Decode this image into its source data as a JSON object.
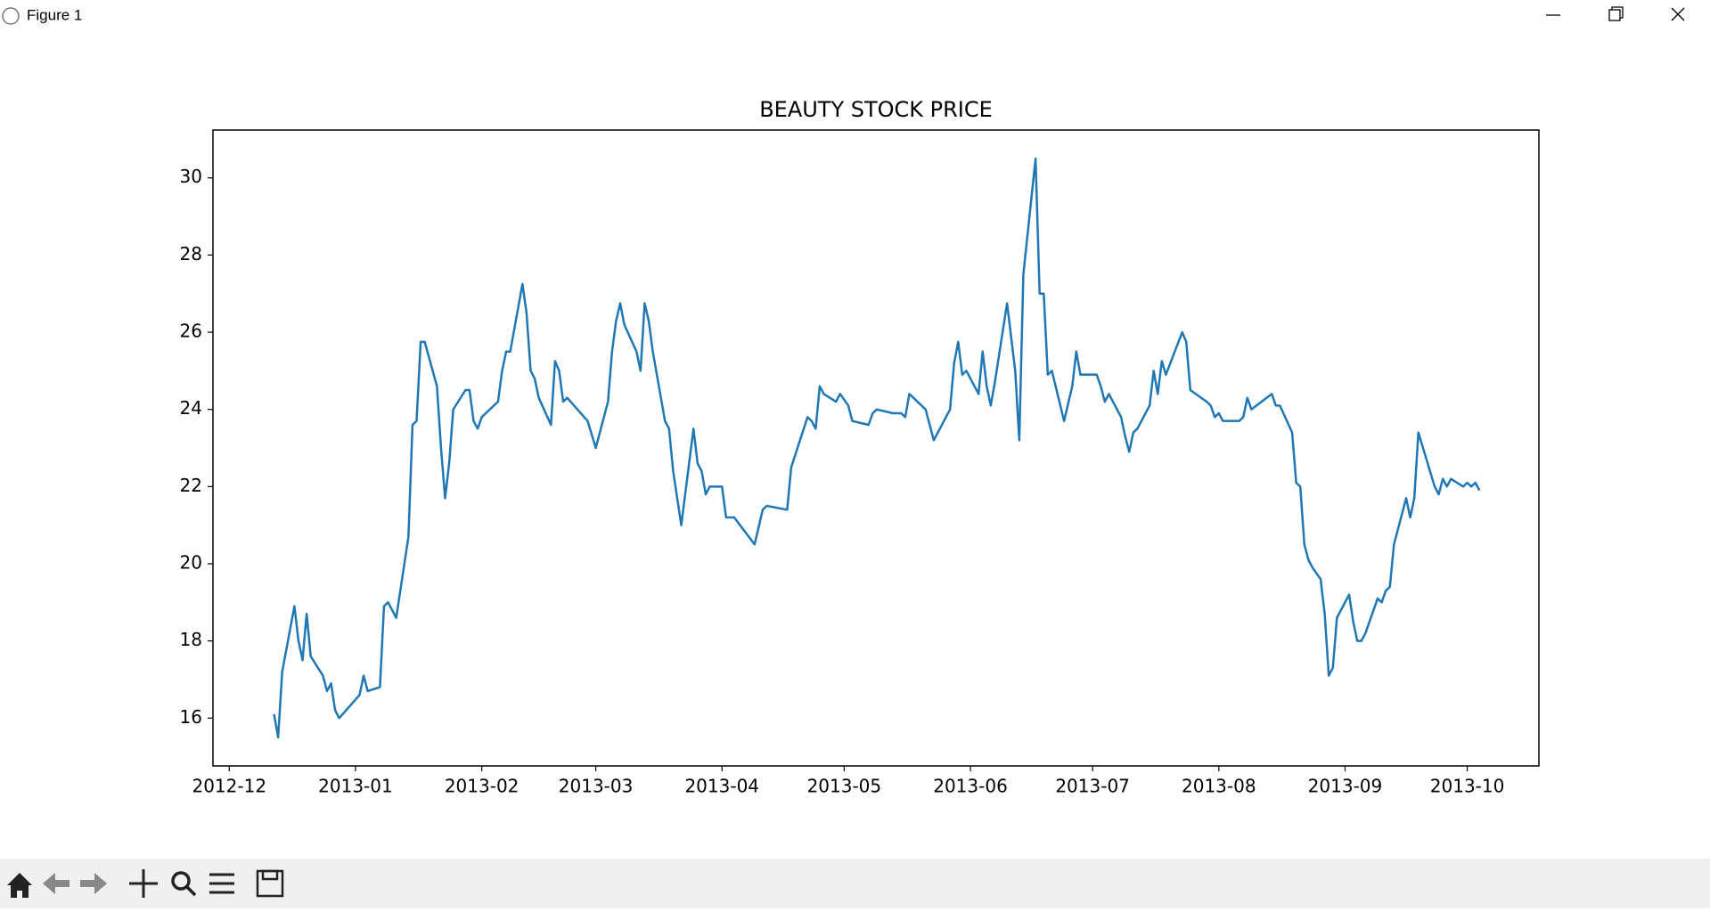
{
  "window_title": "Figure 1",
  "chart_data": {
    "type": "line",
    "title": "BEAUTY STOCK PRICE",
    "color": "#1f77b4",
    "grid": false,
    "x": [
      15686,
      15687,
      15688,
      15691,
      15692,
      15693,
      15694,
      15695,
      15698,
      15699,
      15700,
      15701,
      15702,
      15707,
      15708,
      15709,
      15712,
      15713,
      15714,
      15716,
      15719,
      15720,
      15721,
      15722,
      15723,
      15726,
      15727,
      15728,
      15729,
      15730,
      15733,
      15734,
      15735,
      15736,
      15737,
      15741,
      15742,
      15743,
      15744,
      15747,
      15748,
      15749,
      15750,
      15751,
      15754,
      15755,
      15756,
      15757,
      15758,
      15763,
      15765,
      15768,
      15769,
      15770,
      15771,
      15772,
      15775,
      15776,
      15777,
      15778,
      15779,
      15782,
      15783,
      15784,
      15786,
      15789,
      15790,
      15791,
      15792,
      15793,
      15796,
      15797,
      15799,
      15804,
      15806,
      15807,
      15812,
      15813,
      15817,
      15818,
      15819,
      15820,
      15821,
      15824,
      15825,
      15827,
      15828,
      15832,
      15833,
      15834,
      15838,
      15840,
      15841,
      15842,
      15846,
      15848,
      15852,
      15853,
      15854,
      15855,
      15856,
      15859,
      15860,
      15861,
      15862,
      15863,
      15866,
      15868,
      15869,
      15870,
      15873,
      15874,
      15875,
      15876,
      15877,
      15880,
      15882,
      15883,
      15884,
      15888,
      15889,
      15890,
      15891,
      15894,
      15895,
      15896,
      15897,
      15898,
      15901,
      15902,
      15903,
      15904,
      15905,
      15909,
      15910,
      15911,
      15915,
      15916,
      15917,
      15918,
      15919,
      15923,
      15924,
      15925,
      15926,
      15931,
      15932,
      15933,
      15936,
      15937,
      15938,
      15939,
      15940,
      15941,
      15943,
      15944,
      15945,
      15946,
      15947,
      15950,
      15951,
      15952,
      15953,
      15954,
      15957,
      15958,
      15959,
      15960,
      15961,
      15964,
      15965,
      15966,
      15967,
      15971,
      15972,
      15973,
      15974,
      15975,
      15978,
      15979,
      15980,
      15981,
      15982
    ],
    "values": [
      16.1,
      15.5,
      17.2,
      18.9,
      18.0,
      17.5,
      18.7,
      17.6,
      17.1,
      16.7,
      16.9,
      16.2,
      16.0,
      16.6,
      17.1,
      16.7,
      16.8,
      18.9,
      19.0,
      18.6,
      20.7,
      23.6,
      23.7,
      25.75,
      25.75,
      24.6,
      23.0,
      21.7,
      22.6,
      24.0,
      24.5,
      24.5,
      23.7,
      23.5,
      23.8,
      24.2,
      25.0,
      25.5,
      25.5,
      27.25,
      26.5,
      25.0,
      24.8,
      24.3,
      23.6,
      25.25,
      25.0,
      24.2,
      24.3,
      23.7,
      23.0,
      24.2,
      25.5,
      26.3,
      26.75,
      26.2,
      25.5,
      25.0,
      26.75,
      26.3,
      25.5,
      23.7,
      23.5,
      22.4,
      21.0,
      23.5,
      22.6,
      22.4,
      21.8,
      22.0,
      22.0,
      21.2,
      21.2,
      20.5,
      21.4,
      21.5,
      21.4,
      22.5,
      23.8,
      23.7,
      23.5,
      24.6,
      24.4,
      24.2,
      24.4,
      24.1,
      23.7,
      23.6,
      23.9,
      24.0,
      23.9,
      23.9,
      23.8,
      24.4,
      24.0,
      23.2,
      24.0,
      25.2,
      25.75,
      24.9,
      25.0,
      24.4,
      25.5,
      24.6,
      24.1,
      24.7,
      26.75,
      25.0,
      23.2,
      27.5,
      30.5,
      27.0,
      27.0,
      24.9,
      25.0,
      23.7,
      24.6,
      25.5,
      24.9,
      24.9,
      24.6,
      24.2,
      24.4,
      23.8,
      23.3,
      22.9,
      23.4,
      23.5,
      24.1,
      25.0,
      24.4,
      25.25,
      24.9,
      26.0,
      25.75,
      24.5,
      24.2,
      24.1,
      23.8,
      23.9,
      23.7,
      23.7,
      23.8,
      24.3,
      24.0,
      24.4,
      24.1,
      24.1,
      23.4,
      22.1,
      22.0,
      20.5,
      20.1,
      19.9,
      19.6,
      18.7,
      17.1,
      17.3,
      18.6,
      19.2,
      18.5,
      18.0,
      18.0,
      18.2,
      19.1,
      19.0,
      19.3,
      19.4,
      20.5,
      21.7,
      21.2,
      21.7,
      23.4,
      22.0,
      21.8,
      22.2,
      22.0,
      22.2,
      22.0,
      22.1,
      22.0,
      22.1,
      21.9
    ],
    "xlim": [
      15671,
      15996.6
    ],
    "ylim": [
      14.76,
      31.24
    ],
    "xticks": [
      {
        "value": 15675,
        "label": "2012-12"
      },
      {
        "value": 15706,
        "label": "2013-01"
      },
      {
        "value": 15737,
        "label": "2013-02"
      },
      {
        "value": 15765,
        "label": "2013-03"
      },
      {
        "value": 15796,
        "label": "2013-04"
      },
      {
        "value": 15826,
        "label": "2013-05"
      },
      {
        "value": 15857,
        "label": "2013-06"
      },
      {
        "value": 15887,
        "label": "2013-07"
      },
      {
        "value": 15918,
        "label": "2013-08"
      },
      {
        "value": 15949,
        "label": "2013-09"
      },
      {
        "value": 15979,
        "label": "2013-10"
      }
    ],
    "yticks": [
      16,
      18,
      20,
      22,
      24,
      26,
      28,
      30
    ]
  }
}
